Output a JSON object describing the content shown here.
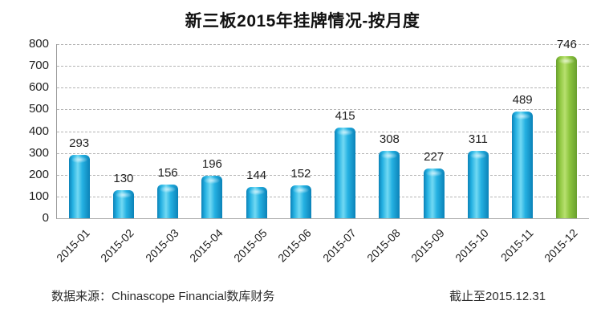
{
  "chart_data": {
    "type": "bar",
    "title": "新三板2015年挂牌情况-按月度",
    "categories": [
      "2015-01",
      "2015-02",
      "2015-03",
      "2015-04",
      "2015-05",
      "2015-06",
      "2015-07",
      "2015-08",
      "2015-09",
      "2015-10",
      "2015-11",
      "2015-12"
    ],
    "values": [
      293,
      130,
      156,
      196,
      144,
      152,
      415,
      308,
      227,
      311,
      489,
      746
    ],
    "xlabel": "",
    "ylabel": "",
    "ylim": [
      0,
      800
    ],
    "yticks": [
      0,
      100,
      200,
      300,
      400,
      500,
      600,
      700,
      800
    ],
    "grid": "horizontal-dashed",
    "legend": "none",
    "value_labels_shown": true,
    "colors": {
      "bar_main": "#25b1e2",
      "bar_light": "#72d9f3",
      "bar_dark": "#0b82b8",
      "highlight_main": "#8dc63f",
      "highlight_light": "#b8e06f",
      "highlight_dark": "#699f2e",
      "gridline": "#b4b4b4",
      "axis": "#9a9a9a",
      "text": "#1f1f1f"
    },
    "highlight_index": 11
  },
  "footer": {
    "source": "数据来源：Chinascope Financial数库财务",
    "asof": "截止至2015.12.31"
  }
}
